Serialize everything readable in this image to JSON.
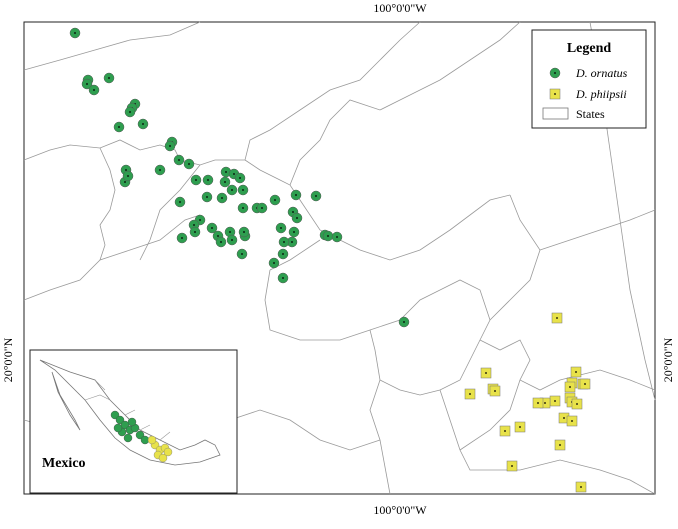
{
  "labels": {
    "top": "100°0'0\"W",
    "bottom": "100°0'0\"W",
    "left": "20°0'0\"N",
    "right": "20°0'0\"N"
  },
  "legend": {
    "title": "Legend",
    "entries": [
      "D. ornatus",
      "D. phiipsii",
      "States"
    ]
  },
  "inset": {
    "label": "Mexico"
  }
}
